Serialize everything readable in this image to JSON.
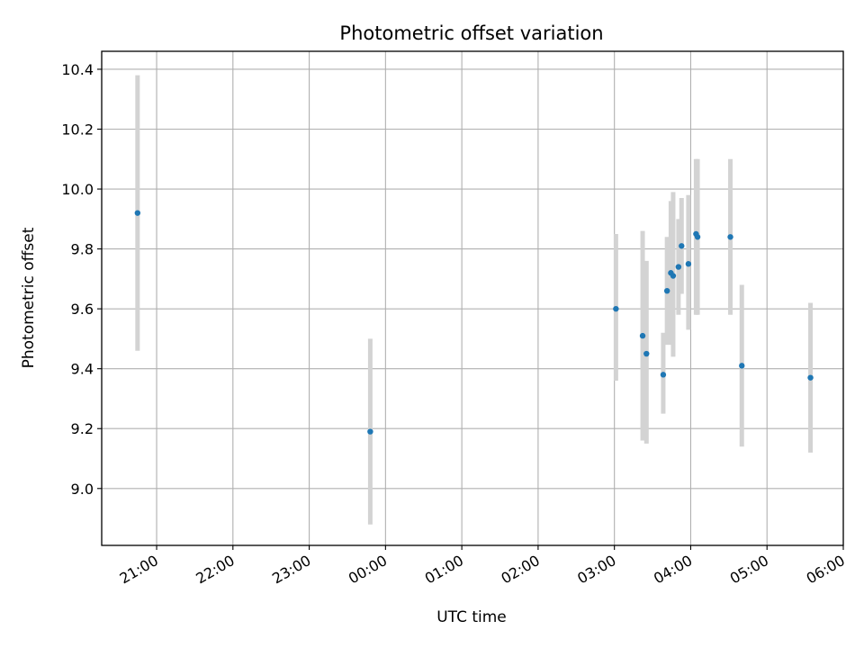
{
  "chart_data": {
    "type": "scatter",
    "title": "Photometric offset variation",
    "xlabel": "UTC time",
    "ylabel": "Photometric offset",
    "x_unit": "UTC hour of night (hours after 20:00 on day 1)",
    "xlim": [
      0.28,
      10.0
    ],
    "ylim": [
      8.81,
      10.46
    ],
    "grid": true,
    "legend": "none",
    "colors": {
      "point": "#1f77b4",
      "errorbar": "#d3d3d3",
      "grid": "#b0b0b0"
    },
    "xticks": [
      {
        "value": 1,
        "label": "21:00"
      },
      {
        "value": 2,
        "label": "22:00"
      },
      {
        "value": 3,
        "label": "23:00"
      },
      {
        "value": 4,
        "label": "00:00"
      },
      {
        "value": 5,
        "label": "01:00"
      },
      {
        "value": 6,
        "label": "02:00"
      },
      {
        "value": 7,
        "label": "03:00"
      },
      {
        "value": 8,
        "label": "04:00"
      },
      {
        "value": 9,
        "label": "05:00"
      },
      {
        "value": 10,
        "label": "06:00"
      }
    ],
    "yticks": [
      {
        "value": 9.0,
        "label": "9.0"
      },
      {
        "value": 9.2,
        "label": "9.2"
      },
      {
        "value": 9.4,
        "label": "9.4"
      },
      {
        "value": 9.6,
        "label": "9.6"
      },
      {
        "value": 9.8,
        "label": "9.8"
      },
      {
        "value": 10.0,
        "label": "10.0"
      },
      {
        "value": 10.2,
        "label": "10.2"
      },
      {
        "value": 10.4,
        "label": "10.4"
      }
    ],
    "series": [
      {
        "points": [
          {
            "time": "20:45",
            "x": 0.75,
            "y": 9.92,
            "err_low": 9.46,
            "err_high": 10.38
          },
          {
            "time": "23:48",
            "x": 3.8,
            "y": 9.19,
            "err_low": 8.88,
            "err_high": 9.5
          },
          {
            "time": "03:01",
            "x": 7.02,
            "y": 9.6,
            "err_low": 9.36,
            "err_high": 9.85
          },
          {
            "time": "03:22",
            "x": 7.37,
            "y": 9.51,
            "err_low": 9.16,
            "err_high": 9.86
          },
          {
            "time": "03:25",
            "x": 7.42,
            "y": 9.45,
            "err_low": 9.15,
            "err_high": 9.76
          },
          {
            "time": "03:38",
            "x": 7.64,
            "y": 9.38,
            "err_low": 9.25,
            "err_high": 9.52
          },
          {
            "time": "03:41",
            "x": 7.69,
            "y": 9.66,
            "err_low": 9.48,
            "err_high": 9.84
          },
          {
            "time": "03:44",
            "x": 7.74,
            "y": 9.72,
            "err_low": 9.48,
            "err_high": 9.96
          },
          {
            "time": "03:46",
            "x": 7.77,
            "y": 9.71,
            "err_low": 9.44,
            "err_high": 9.99
          },
          {
            "time": "03:50",
            "x": 7.84,
            "y": 9.74,
            "err_low": 9.58,
            "err_high": 9.9
          },
          {
            "time": "03:53",
            "x": 7.88,
            "y": 9.81,
            "err_low": 9.65,
            "err_high": 9.97
          },
          {
            "time": "03:58",
            "x": 7.97,
            "y": 9.75,
            "err_low": 9.53,
            "err_high": 9.98
          },
          {
            "time": "04:04",
            "x": 8.07,
            "y": 9.85,
            "err_low": 9.58,
            "err_high": 10.1
          },
          {
            "time": "04:05",
            "x": 8.09,
            "y": 9.84,
            "err_low": 9.58,
            "err_high": 10.1
          },
          {
            "time": "04:31",
            "x": 8.52,
            "y": 9.84,
            "err_low": 9.58,
            "err_high": 10.1
          },
          {
            "time": "04:40",
            "x": 8.67,
            "y": 9.41,
            "err_low": 9.14,
            "err_high": 9.68
          },
          {
            "time": "05:34",
            "x": 9.57,
            "y": 9.37,
            "err_low": 9.12,
            "err_high": 9.62
          }
        ]
      }
    ]
  }
}
